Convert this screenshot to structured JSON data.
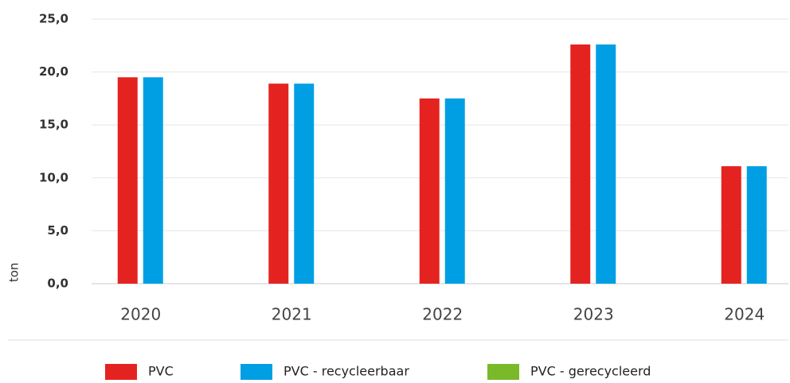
{
  "chart_data": {
    "type": "bar",
    "y_label": "ton",
    "categories": [
      "2020",
      "2021",
      "2022",
      "2023",
      "2024"
    ],
    "series": [
      {
        "name": "PVC",
        "color": "#e42320",
        "values": [
          19.5,
          18.9,
          17.5,
          22.6,
          11.1
        ]
      },
      {
        "name": "PVC - recycleerbaar",
        "color": "#009fe3",
        "values": [
          19.5,
          18.9,
          17.5,
          22.6,
          11.1
        ]
      },
      {
        "name": "PVC - gerecycleerd",
        "color": "#7ab929",
        "values": [
          0,
          0,
          0,
          0,
          0
        ]
      }
    ],
    "ylim": [
      0,
      25
    ],
    "yticks": [
      {
        "value": 0,
        "label": "0,0"
      },
      {
        "value": 5,
        "label": "5,0"
      },
      {
        "value": 10,
        "label": "10,0"
      },
      {
        "value": 15,
        "label": "15,0"
      },
      {
        "value": 20,
        "label": "20,0"
      },
      {
        "value": 25,
        "label": "25,0"
      }
    ],
    "grid": true,
    "legend": "bottom"
  }
}
